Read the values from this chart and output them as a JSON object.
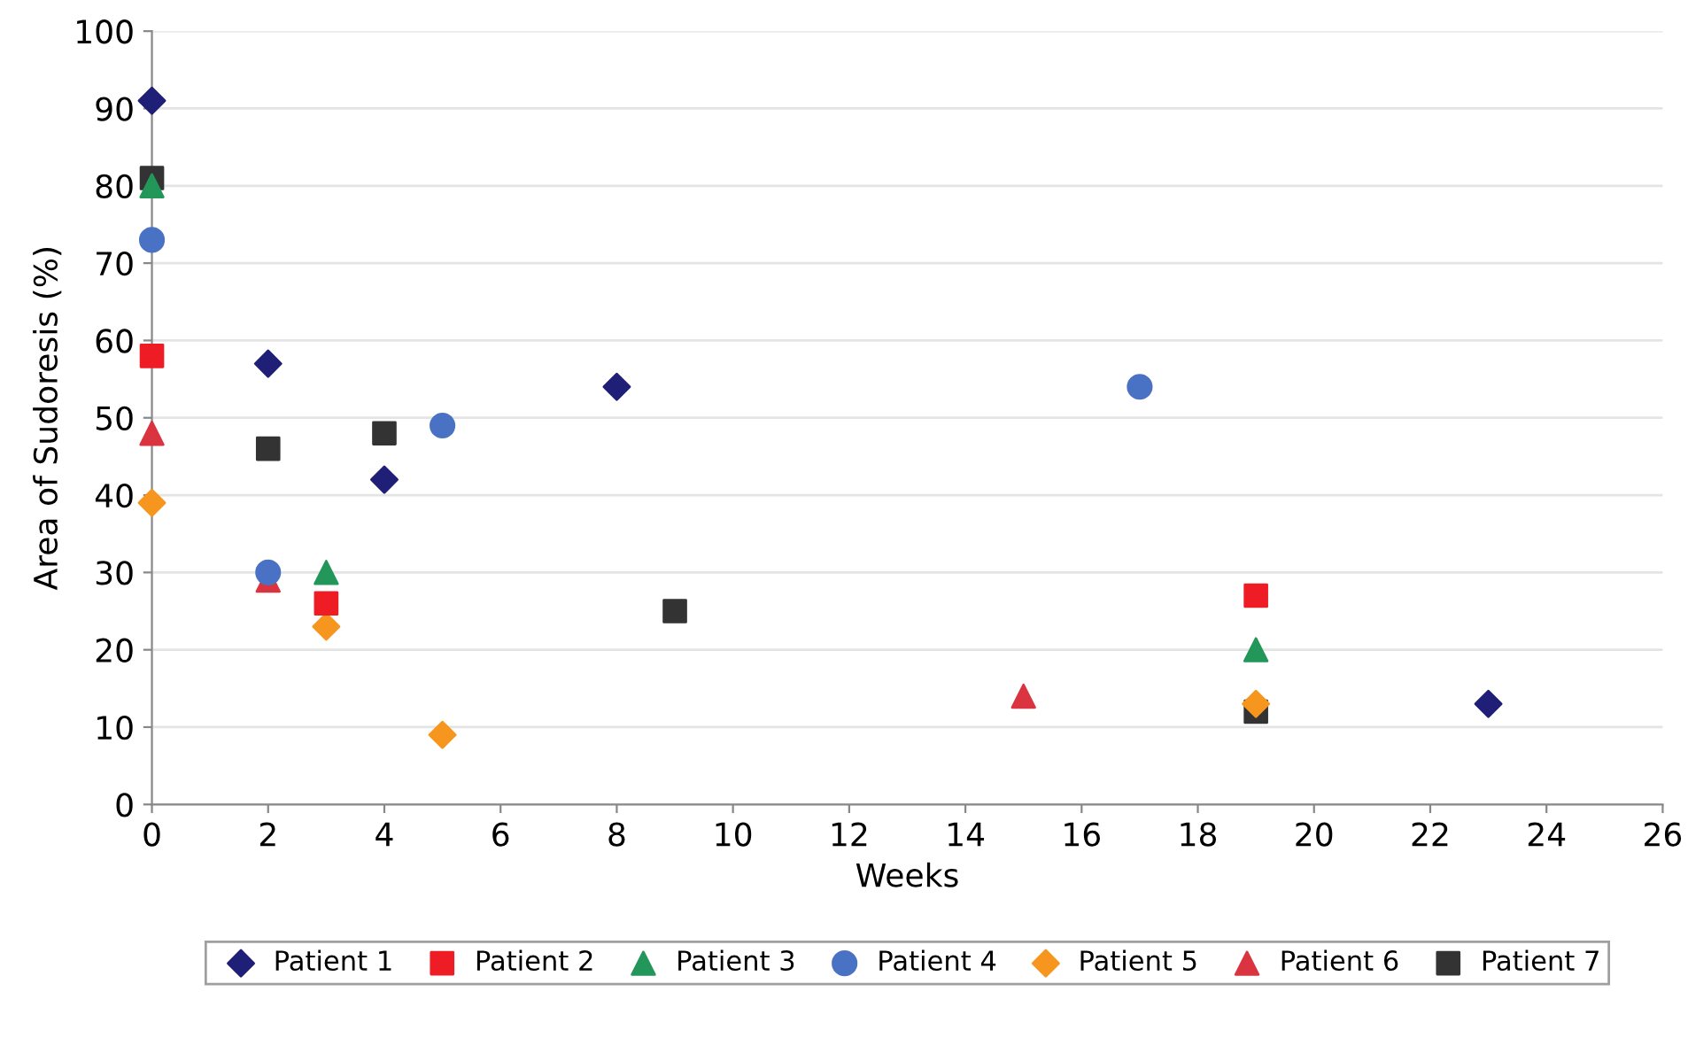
{
  "chart_data": {
    "type": "scatter",
    "xlabel": "Weeks",
    "ylabel": "Area of Sudoresis (%)",
    "xlim": [
      0,
      26
    ],
    "xticks": [
      0,
      2,
      4,
      6,
      8,
      10,
      12,
      14,
      16,
      18,
      20,
      22,
      24,
      26
    ],
    "ylim": [
      0,
      100
    ],
    "yticks": [
      0,
      10,
      20,
      30,
      40,
      50,
      60,
      70,
      80,
      90,
      100
    ],
    "grid": "y",
    "legend": "bottom",
    "series": [
      {
        "name": "Patient 1",
        "color": "#1f1f78",
        "marker": "diamond",
        "x": [
          0,
          2,
          4,
          8,
          23
        ],
        "values": [
          91,
          57,
          42,
          54,
          13
        ]
      },
      {
        "name": "Patient 2",
        "color": "#ee1c25",
        "marker": "square",
        "x": [
          0,
          3,
          19
        ],
        "values": [
          58,
          26,
          27
        ]
      },
      {
        "name": "Patient 3",
        "color": "#23965a",
        "marker": "triangle",
        "x": [
          0,
          3,
          19
        ],
        "values": [
          80,
          30,
          20
        ]
      },
      {
        "name": "Patient 4",
        "color": "#4a72c4",
        "marker": "circle",
        "x": [
          0,
          2,
          5,
          17
        ],
        "values": [
          73,
          30,
          49,
          54
        ]
      },
      {
        "name": "Patient 5",
        "color": "#f7961e",
        "marker": "diamond",
        "x": [
          0,
          3,
          5,
          19
        ],
        "values": [
          39,
          23,
          9,
          13
        ]
      },
      {
        "name": "Patient 6",
        "color": "#d9343f",
        "marker": "triangle",
        "x": [
          0,
          2,
          15
        ],
        "values": [
          48,
          29,
          14
        ]
      },
      {
        "name": "Patient 7",
        "color": "#333333",
        "marker": "square",
        "x": [
          0,
          2,
          4,
          9,
          19
        ],
        "values": [
          81,
          46,
          48,
          25,
          12
        ]
      }
    ]
  }
}
